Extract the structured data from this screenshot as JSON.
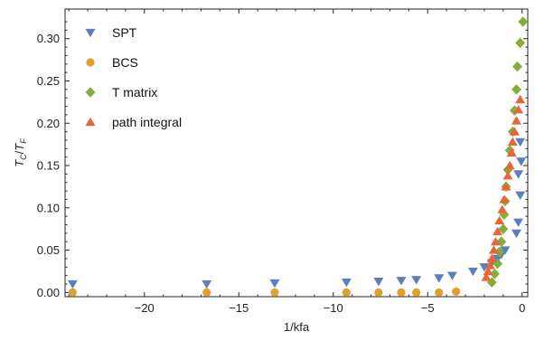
{
  "chart_data": {
    "type": "scatter",
    "xlabel": "1/kfa",
    "ylabel_main": "T",
    "ylabel_sub1": "C",
    "ylabel_slash": "/",
    "ylabel_main2": "T",
    "ylabel_sub2": "F",
    "xlim": [
      -24.2,
      0.3
    ],
    "ylim": [
      -0.005,
      0.335
    ],
    "x_ticks": [
      -20,
      -15,
      -10,
      -5,
      0
    ],
    "x_tick_labels": [
      "−20",
      "−15",
      "−10",
      "−5",
      "0"
    ],
    "y_ticks": [
      0.0,
      0.05,
      0.1,
      0.15,
      0.2,
      0.25,
      0.3
    ],
    "y_tick_labels": [
      "0.00",
      "0.05",
      "0.10",
      "0.15",
      "0.20",
      "0.25",
      "0.30"
    ],
    "legend_position": "top-left",
    "series": [
      {
        "name": "SPT",
        "marker": "triangle-down",
        "color": "#5b7fb8",
        "points": [
          [
            -23.8,
            0.01
          ],
          [
            -16.7,
            0.01
          ],
          [
            -13.1,
            0.011
          ],
          [
            -9.3,
            0.012
          ],
          [
            -7.6,
            0.013
          ],
          [
            -6.4,
            0.014
          ],
          [
            -5.6,
            0.015
          ],
          [
            -4.4,
            0.017
          ],
          [
            -3.7,
            0.02
          ],
          [
            -2.6,
            0.025
          ],
          [
            -2.0,
            0.03
          ],
          [
            -1.6,
            0.035
          ],
          [
            -1.3,
            0.04
          ],
          [
            -1.1,
            0.045
          ],
          [
            -0.9,
            0.05
          ],
          [
            -0.3,
            0.07
          ],
          [
            -0.2,
            0.083
          ],
          [
            -0.1,
            0.115
          ],
          [
            -0.2,
            0.14
          ],
          [
            -0.05,
            0.155
          ],
          [
            -0.1,
            0.178
          ]
        ]
      },
      {
        "name": "BCS",
        "marker": "circle",
        "color": "#e0a030",
        "points": [
          [
            -23.8,
            0.0
          ],
          [
            -16.7,
            0.0
          ],
          [
            -13.1,
            0.0
          ],
          [
            -9.3,
            0.0
          ],
          [
            -7.6,
            0.0
          ],
          [
            -6.4,
            0.0
          ],
          [
            -5.6,
            0.0
          ],
          [
            -4.4,
            0.0
          ],
          [
            -3.5,
            0.001
          ]
        ]
      },
      {
        "name": "T matrix",
        "marker": "diamond",
        "color": "#86ad3a",
        "points": [
          [
            -1.6,
            0.012
          ],
          [
            -1.45,
            0.022
          ],
          [
            -1.3,
            0.034
          ],
          [
            -1.2,
            0.048
          ],
          [
            -1.1,
            0.06
          ],
          [
            -1.0,
            0.075
          ],
          [
            -0.95,
            0.092
          ],
          [
            -0.9,
            0.108
          ],
          [
            -0.85,
            0.125
          ],
          [
            -0.75,
            0.145
          ],
          [
            -0.65,
            0.168
          ],
          [
            -0.5,
            0.19
          ],
          [
            -0.4,
            0.215
          ],
          [
            -0.3,
            0.24
          ],
          [
            -0.25,
            0.267
          ],
          [
            -0.1,
            0.295
          ],
          [
            0.05,
            0.32
          ]
        ]
      },
      {
        "name": "path integral",
        "marker": "triangle-up",
        "color": "#e8643a",
        "points": [
          [
            -1.9,
            0.018
          ],
          [
            -1.8,
            0.025
          ],
          [
            -1.7,
            0.032
          ],
          [
            -1.6,
            0.04
          ],
          [
            -1.5,
            0.05
          ],
          [
            -1.4,
            0.06
          ],
          [
            -1.3,
            0.072
          ],
          [
            -1.2,
            0.085
          ],
          [
            -1.05,
            0.098
          ],
          [
            -0.95,
            0.11
          ],
          [
            -0.85,
            0.125
          ],
          [
            -0.75,
            0.138
          ],
          [
            -0.65,
            0.15
          ],
          [
            -0.55,
            0.165
          ],
          [
            -0.5,
            0.178
          ],
          [
            -0.4,
            0.19
          ],
          [
            -0.3,
            0.203
          ],
          [
            -0.2,
            0.216
          ],
          [
            -0.1,
            0.228
          ]
        ]
      }
    ]
  }
}
